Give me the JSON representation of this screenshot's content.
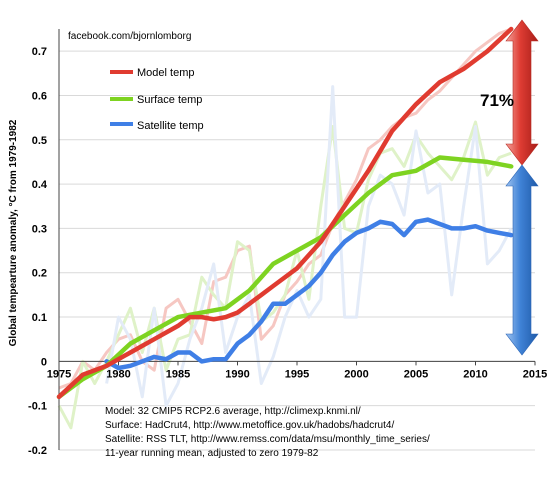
{
  "chart_data": {
    "type": "line",
    "source_note": "facebook.com/bjornlomborg",
    "ylabel": "Global tempearture anomaly, °C from 1979-1982",
    "xlim": [
      1975,
      2015
    ],
    "ylim": [
      -0.2,
      0.75
    ],
    "x_ticks": [
      "1975",
      "1980",
      "1985",
      "1990",
      "1995",
      "2000",
      "2005",
      "2010",
      "2015"
    ],
    "y_ticks": [
      "-0.2",
      "-0.1",
      "0",
      "0.1",
      "0.2",
      "0.3",
      "0.4",
      "0.5",
      "0.6",
      "0.7"
    ],
    "grid": "horizontal",
    "legend_position": "top-left",
    "annotation": "71%",
    "notes": [
      "Model: 32 CMIP5 RCP2.6 average, http://climexp.knmi.nl/",
      "Surface: HadCrut4, http://www.metoffice.gov.uk/hadobs/hadcrut4/",
      "Satellite: RSS TLT, http://www.remss.com/data/msu/monthly_time_series/",
      "11-year running mean, adjusted to zero 1979-82"
    ],
    "series": [
      {
        "name": "Model temp",
        "color": "#e03b30",
        "x": [
          1975,
          1977,
          1979,
          1981,
          1983,
          1985,
          1986,
          1987,
          1988,
          1989,
          1990,
          1991,
          1992,
          1993,
          1995,
          1997,
          1999,
          2001,
          2003,
          2005,
          2007,
          2009,
          2011,
          2013
        ],
        "values": [
          -0.08,
          -0.03,
          -0.01,
          0.02,
          0.05,
          0.08,
          0.1,
          0.1,
          0.095,
          0.1,
          0.11,
          0.13,
          0.15,
          0.17,
          0.21,
          0.27,
          0.35,
          0.43,
          0.52,
          0.58,
          0.63,
          0.66,
          0.7,
          0.75
        ]
      },
      {
        "name": "Surface temp",
        "color": "#7ed321",
        "x": [
          1975,
          1977,
          1979,
          1981,
          1983,
          1985,
          1987,
          1989,
          1991,
          1993,
          1995,
          1997,
          1999,
          2001,
          2003,
          2005,
          2007,
          2009,
          2011,
          2013
        ],
        "values": [
          -0.08,
          -0.04,
          -0.01,
          0.04,
          0.07,
          0.1,
          0.11,
          0.12,
          0.16,
          0.22,
          0.25,
          0.28,
          0.33,
          0.38,
          0.42,
          0.43,
          0.46,
          0.455,
          0.45,
          0.44
        ]
      },
      {
        "name": "Satellite temp",
        "color": "#3f7fe6",
        "x": [
          1979,
          1980,
          1981,
          1982,
          1983,
          1984,
          1985,
          1986,
          1987,
          1988,
          1989,
          1990,
          1991,
          1992,
          1993,
          1994,
          1995,
          1996,
          1997,
          1998,
          1999,
          2000,
          2001,
          2002,
          2003,
          2004,
          2005,
          2006,
          2007,
          2008,
          2009,
          2010,
          2011,
          2012,
          2013
        ],
        "values": [
          0.0,
          -0.015,
          -0.01,
          0.0,
          0.01,
          0.005,
          0.02,
          0.02,
          0.0,
          0.005,
          0.005,
          0.04,
          0.06,
          0.09,
          0.13,
          0.13,
          0.15,
          0.17,
          0.2,
          0.24,
          0.27,
          0.29,
          0.3,
          0.315,
          0.31,
          0.285,
          0.315,
          0.32,
          0.31,
          0.3,
          0.3,
          0.305,
          0.295,
          0.29,
          0.285
        ]
      }
    ],
    "faint_series": [
      {
        "color": "#f6c7c2",
        "x": [
          1975,
          1976,
          1977,
          1978,
          1979,
          1980,
          1981,
          1982,
          1983,
          1984,
          1985,
          1986,
          1987,
          1988,
          1989,
          1990,
          1991,
          1992,
          1993,
          1994,
          1995,
          1996,
          1997,
          1998,
          1999,
          2000,
          2001,
          2002,
          2003,
          2004,
          2005,
          2006,
          2007,
          2008,
          2009,
          2010,
          2011,
          2012,
          2013
        ],
        "values": [
          -0.06,
          -0.05,
          0.0,
          -0.02,
          0.02,
          0.05,
          0.06,
          0.0,
          -0.02,
          0.12,
          0.14,
          0.09,
          0.04,
          0.18,
          0.19,
          0.25,
          0.26,
          0.05,
          0.08,
          0.15,
          0.18,
          0.22,
          0.24,
          0.31,
          0.36,
          0.41,
          0.48,
          0.5,
          0.53,
          0.55,
          0.56,
          0.59,
          0.61,
          0.64,
          0.67,
          0.7,
          0.72,
          0.74,
          0.75
        ]
      },
      {
        "color": "#dff2c8",
        "x": [
          1975,
          1976,
          1977,
          1978,
          1979,
          1980,
          1981,
          1982,
          1983,
          1984,
          1985,
          1986,
          1987,
          1988,
          1989,
          1990,
          1991,
          1992,
          1993,
          1994,
          1995,
          1996,
          1997,
          1998,
          1999,
          2000,
          2001,
          2002,
          2003,
          2004,
          2005,
          2006,
          2007,
          2008,
          2009,
          2010,
          2011,
          2012,
          2013
        ],
        "values": [
          -0.1,
          -0.15,
          0.0,
          -0.05,
          0.0,
          0.06,
          0.12,
          0.02,
          0.12,
          -0.02,
          0.05,
          0.06,
          0.19,
          0.15,
          0.12,
          0.27,
          0.25,
          0.09,
          0.11,
          0.15,
          0.25,
          0.14,
          0.35,
          0.53,
          0.3,
          0.29,
          0.41,
          0.47,
          0.48,
          0.44,
          0.51,
          0.47,
          0.44,
          0.41,
          0.46,
          0.54,
          0.42,
          0.46,
          0.47
        ]
      },
      {
        "color": "#e3ebf8",
        "x": [
          1979,
          1980,
          1981,
          1982,
          1983,
          1984,
          1985,
          1986,
          1987,
          1988,
          1989,
          1990,
          1991,
          1992,
          1993,
          1994,
          1995,
          1996,
          1997,
          1998,
          1999,
          2000,
          2001,
          2002,
          2003,
          2004,
          2005,
          2006,
          2007,
          2008,
          2009,
          2010,
          2011,
          2012,
          2013
        ],
        "values": [
          -0.05,
          0.1,
          0.05,
          -0.08,
          0.12,
          -0.1,
          -0.05,
          0.05,
          0.12,
          0.22,
          0.02,
          0.1,
          0.15,
          -0.05,
          0.01,
          0.1,
          0.16,
          0.1,
          0.14,
          0.62,
          0.1,
          0.1,
          0.35,
          0.42,
          0.4,
          0.33,
          0.52,
          0.38,
          0.4,
          0.15,
          0.35,
          0.53,
          0.22,
          0.25,
          0.3
        ]
      }
    ]
  }
}
